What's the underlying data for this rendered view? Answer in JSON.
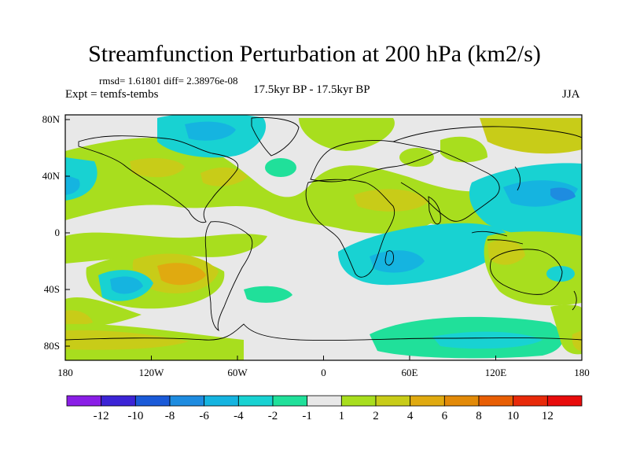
{
  "title": "Streamfunction Perturbation at 200 hPa (km2/s)",
  "stats": "rmsd= 1.61801 diff= 2.38976e-08",
  "experiment": "Expt = temfs-tembs",
  "period": "17.5kyr BP - 17.5kyr BP",
  "season": "JJA",
  "axes": {
    "lat_ticks": [
      "80N",
      "40N",
      "0",
      "40S",
      "80S"
    ],
    "lon_ticks": [
      "180",
      "120W",
      "60W",
      "0",
      "60E",
      "120E",
      "180"
    ]
  },
  "colorbar": {
    "labels": [
      "-12",
      "-10",
      "-8",
      "-6",
      "-4",
      "-2",
      "-1",
      "1",
      "2",
      "4",
      "6",
      "8",
      "10",
      "12"
    ],
    "colors": [
      "#8a1ee6",
      "#3c24d6",
      "#1a5ad8",
      "#1e8ce0",
      "#15b4e0",
      "#18d2d2",
      "#20e09a",
      "#e8e8e8",
      "#a8de1e",
      "#c8cc18",
      "#e0aa10",
      "#e28a08",
      "#e85e04",
      "#e82a0a",
      "#e80c0c"
    ]
  },
  "colors": {
    "background": "#e8e8e8",
    "coastline": "#000000"
  }
}
